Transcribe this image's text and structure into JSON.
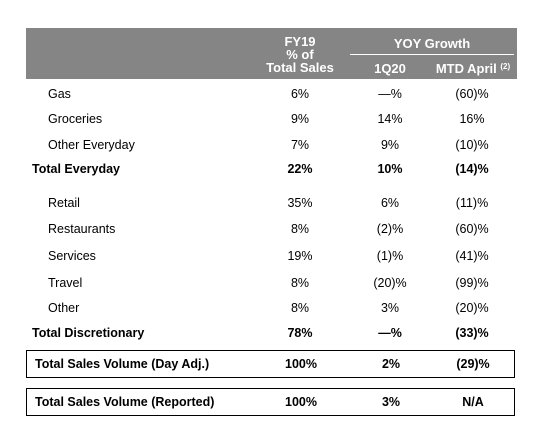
{
  "header": {
    "fy_line1": "FY19",
    "fy_line2": "% of",
    "fy_line3": "Total Sales",
    "yoy_growth": "YOY Growth",
    "col_q": "1Q20",
    "col_mtd": "MTD April",
    "col_mtd_note": "(2)"
  },
  "rows": [
    {
      "label": "Gas",
      "fy": "6%",
      "q": "—%",
      "mtd": "(60)%"
    },
    {
      "label": "Groceries",
      "fy": "9%",
      "q": "14%",
      "mtd": "16%"
    },
    {
      "label": "Other Everyday",
      "fy": "7%",
      "q": "9%",
      "mtd": "(10)%"
    },
    {
      "label": "Total Everyday",
      "fy": "22%",
      "q": "10%",
      "mtd": "(14)%"
    },
    {
      "label": "Retail",
      "fy": "35%",
      "q": "6%",
      "mtd": "(11)%"
    },
    {
      "label": "Restaurants",
      "fy": "8%",
      "q": "(2)%",
      "mtd": "(60)%"
    },
    {
      "label": "Services",
      "fy": "19%",
      "q": "(1)%",
      "mtd": "(41)%"
    },
    {
      "label": "Travel",
      "fy": "8%",
      "q": "(20)%",
      "mtd": "(99)%"
    },
    {
      "label": "Other",
      "fy": "8%",
      "q": "3%",
      "mtd": "(20)%"
    },
    {
      "label": "Total Discretionary",
      "fy": "78%",
      "q": "—%",
      "mtd": "(33)%"
    },
    {
      "label": "Total Sales Volume (Day Adj.)",
      "fy": "100%",
      "q": "2%",
      "mtd": "(29)%"
    },
    {
      "label": "Total Sales Volume (Reported)",
      "fy": "100%",
      "q": "3%",
      "mtd": "N/A"
    }
  ]
}
